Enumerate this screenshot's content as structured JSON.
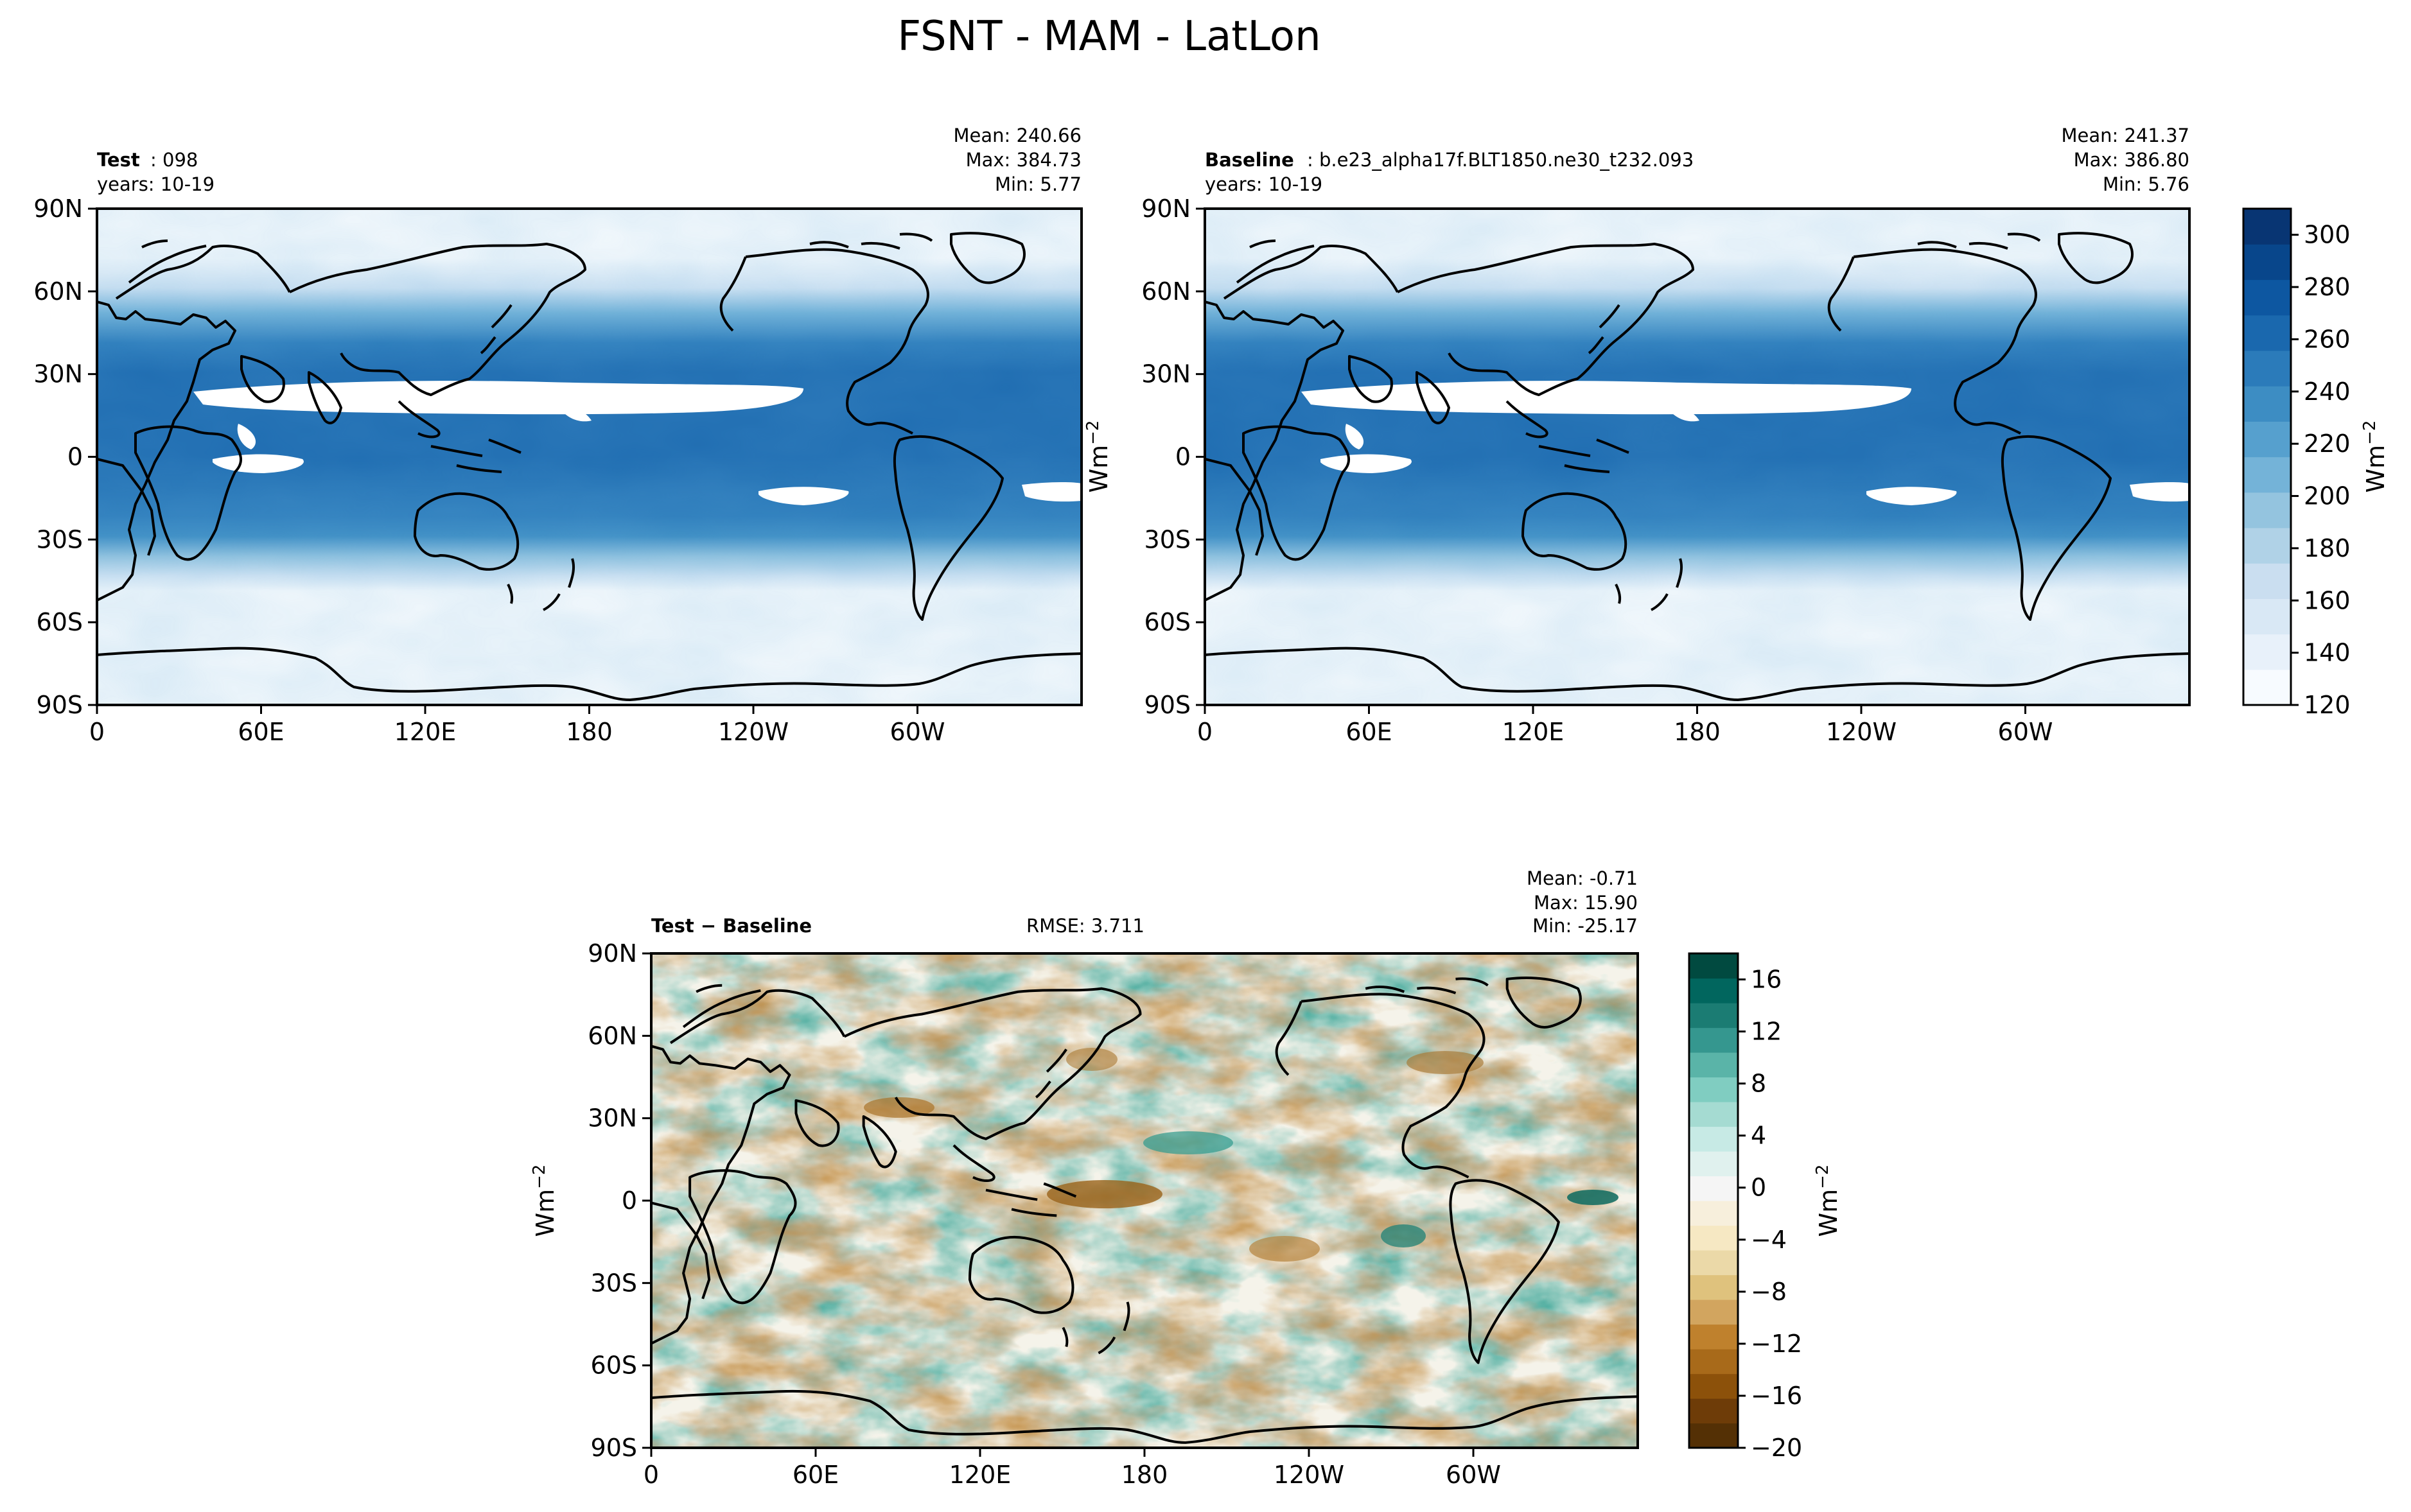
{
  "figure": {
    "title": "FSNT - MAM - LatLon"
  },
  "panels": {
    "test": {
      "label_bold": "Test",
      "label_rest": ": 098",
      "years": "years: 10-19",
      "stats": [
        "Mean: 240.66",
        "Max: 384.73",
        "Min:  5.77"
      ]
    },
    "baseline": {
      "label_bold": "Baseline",
      "label_rest": ": b.e23_alpha17f.BLT1850.ne30_t232.093",
      "years": "years: 10-19",
      "stats": [
        "Mean: 241.37",
        "Max: 386.80",
        "Min:  5.76"
      ]
    },
    "diff": {
      "label_bold": "Test − Baseline",
      "rmse": "RMSE: 3.711",
      "stats": [
        "Mean: -0.71",
        "Max: 15.90",
        "Min: -25.17"
      ]
    }
  },
  "units_label": "Wm",
  "units_exp": "−2",
  "chart_data": [
    {
      "type": "heatmap",
      "panel": "Test",
      "x_ticks": [
        "0",
        "60E",
        "120E",
        "180",
        "120W",
        "60W"
      ],
      "x_tick_values": [
        0,
        60,
        120,
        180,
        240,
        300
      ],
      "xlim": [
        0,
        360
      ],
      "y_ticks": [
        "90N",
        "60N",
        "30N",
        "0",
        "30S",
        "60S",
        "90S"
      ],
      "y_tick_values": [
        90,
        60,
        30,
        0,
        -30,
        -60,
        -90
      ],
      "ylim": [
        -90,
        90
      ],
      "colorbar": "shared with Baseline"
    },
    {
      "type": "heatmap",
      "panel": "Baseline",
      "x_ticks": [
        "0",
        "60E",
        "120E",
        "180",
        "120W",
        "60W"
      ],
      "x_tick_values": [
        0,
        60,
        120,
        180,
        240,
        300
      ],
      "xlim": [
        0,
        360
      ],
      "y_ticks": [
        "90N",
        "60N",
        "30N",
        "0",
        "30S",
        "60S",
        "90S"
      ],
      "y_tick_values": [
        90,
        60,
        30,
        0,
        -30,
        -60,
        -90
      ],
      "ylim": [
        -90,
        90
      ],
      "colorbar": {
        "ticks": [
          "120",
          "140",
          "160",
          "180",
          "200",
          "220",
          "240",
          "260",
          "280",
          "300"
        ],
        "range": [
          120,
          310
        ],
        "colors": [
          "#f7fbff",
          "#e8f1fa",
          "#d9e8f5",
          "#cadef0",
          "#b0d2e7",
          "#94c4df",
          "#74b3d8",
          "#56a0ce",
          "#3d8dc3",
          "#2b7bba",
          "#1a68ae",
          "#0d57a1",
          "#08468b",
          "#083573"
        ]
      }
    },
    {
      "type": "heatmap",
      "panel": "Test − Baseline",
      "x_ticks": [
        "0",
        "60E",
        "120E",
        "180",
        "120W",
        "60W"
      ],
      "x_tick_values": [
        0,
        60,
        120,
        180,
        240,
        300
      ],
      "xlim": [
        0,
        360
      ],
      "y_ticks": [
        "90N",
        "60N",
        "30N",
        "0",
        "30S",
        "60S",
        "90S"
      ],
      "y_tick_values": [
        90,
        60,
        30,
        0,
        -30,
        -60,
        -90
      ],
      "ylim": [
        -90,
        90
      ],
      "colorbar": {
        "ticks": [
          "16",
          "12",
          "8",
          "4",
          "0",
          "−4",
          "−8",
          "−12",
          "−16",
          "−20"
        ],
        "tick_values": [
          16,
          12,
          8,
          4,
          0,
          -4,
          -8,
          -12,
          -16,
          -20
        ],
        "range": [
          -20,
          18
        ],
        "colors": [
          "#543005",
          "#6e3c08",
          "#8c510a",
          "#a86a1a",
          "#bf812d",
          "#d2a55f",
          "#dfc27d",
          "#ebd9a8",
          "#f6e8c3",
          "#f7efdc",
          "#f5f5f5",
          "#e0f1ee",
          "#c7eae5",
          "#a5dbd2",
          "#80cdc1",
          "#5ab4a8",
          "#35978f",
          "#1b7c73",
          "#01665e",
          "#014a40"
        ]
      }
    }
  ]
}
